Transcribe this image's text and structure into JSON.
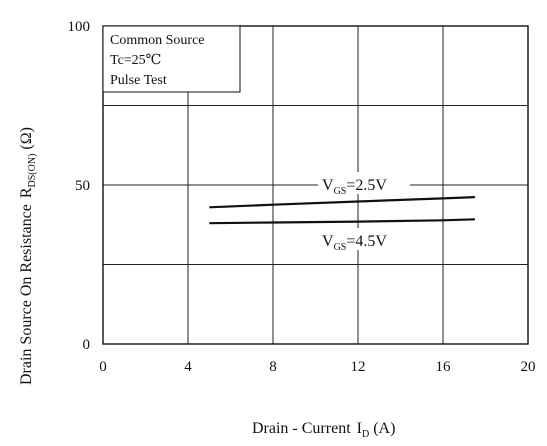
{
  "chart_data": {
    "type": "line",
    "xlabel": "Drain - Current",
    "xlabel_symbol": "I",
    "xlabel_sub": "D",
    "xlabel_unit": "(A)",
    "ylabel": "Drain Source On Resistance",
    "ylabel_symbol": "R",
    "ylabel_sub": "DS(ON)",
    "ylabel_unit": "(Ω)",
    "xlim": [
      0,
      20
    ],
    "ylim": [
      0,
      100
    ],
    "x_ticks": [
      "0",
      "4",
      "8",
      "12",
      "16",
      "20"
    ],
    "y_ticks": [
      "0",
      "50",
      "100"
    ],
    "grid": true,
    "conditions": [
      "Common Source",
      "Tc=25℃",
      "Pulse Test"
    ],
    "series": [
      {
        "name": "VGS=2.5V",
        "label_main": "V",
        "label_sub": "GS",
        "label_rest": "=2.5V",
        "x": [
          5,
          8,
          12,
          16,
          17.5
        ],
        "y": [
          43.0,
          43.8,
          44.8,
          45.8,
          46.2
        ]
      },
      {
        "name": "VGS=4.5V",
        "label_main": "V",
        "label_sub": "GS",
        "label_rest": "=4.5V",
        "x": [
          5,
          8,
          12,
          16,
          17.5
        ],
        "y": [
          38.0,
          38.2,
          38.5,
          38.9,
          39.2
        ]
      }
    ]
  }
}
